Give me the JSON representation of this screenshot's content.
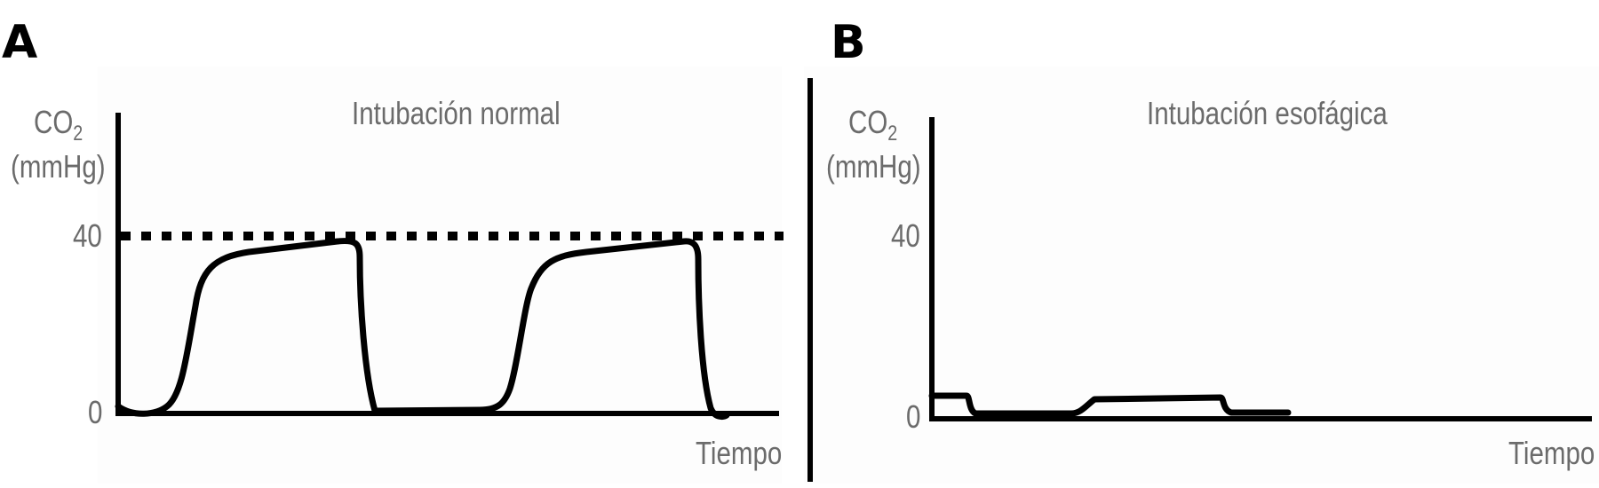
{
  "panel_a": {
    "letter": "A",
    "title": "Intubación normal",
    "ylabel_main": "CO",
    "ylabel_sub": "2",
    "ylabel_unit": "(mmHg)",
    "tick_40": "40",
    "tick_0": "0",
    "xlabel": "Tiempo"
  },
  "panel_b": {
    "letter": "B",
    "title": "Intubación esofágica",
    "ylabel_main": "CO",
    "ylabel_sub": "2",
    "ylabel_unit": "(mmHg)",
    "tick_40": "40",
    "tick_0": "0",
    "xlabel": "Tiempo"
  },
  "colors": {
    "trace": "#000000",
    "label": "#6b6b6b",
    "background": "#fdfdfd"
  }
}
